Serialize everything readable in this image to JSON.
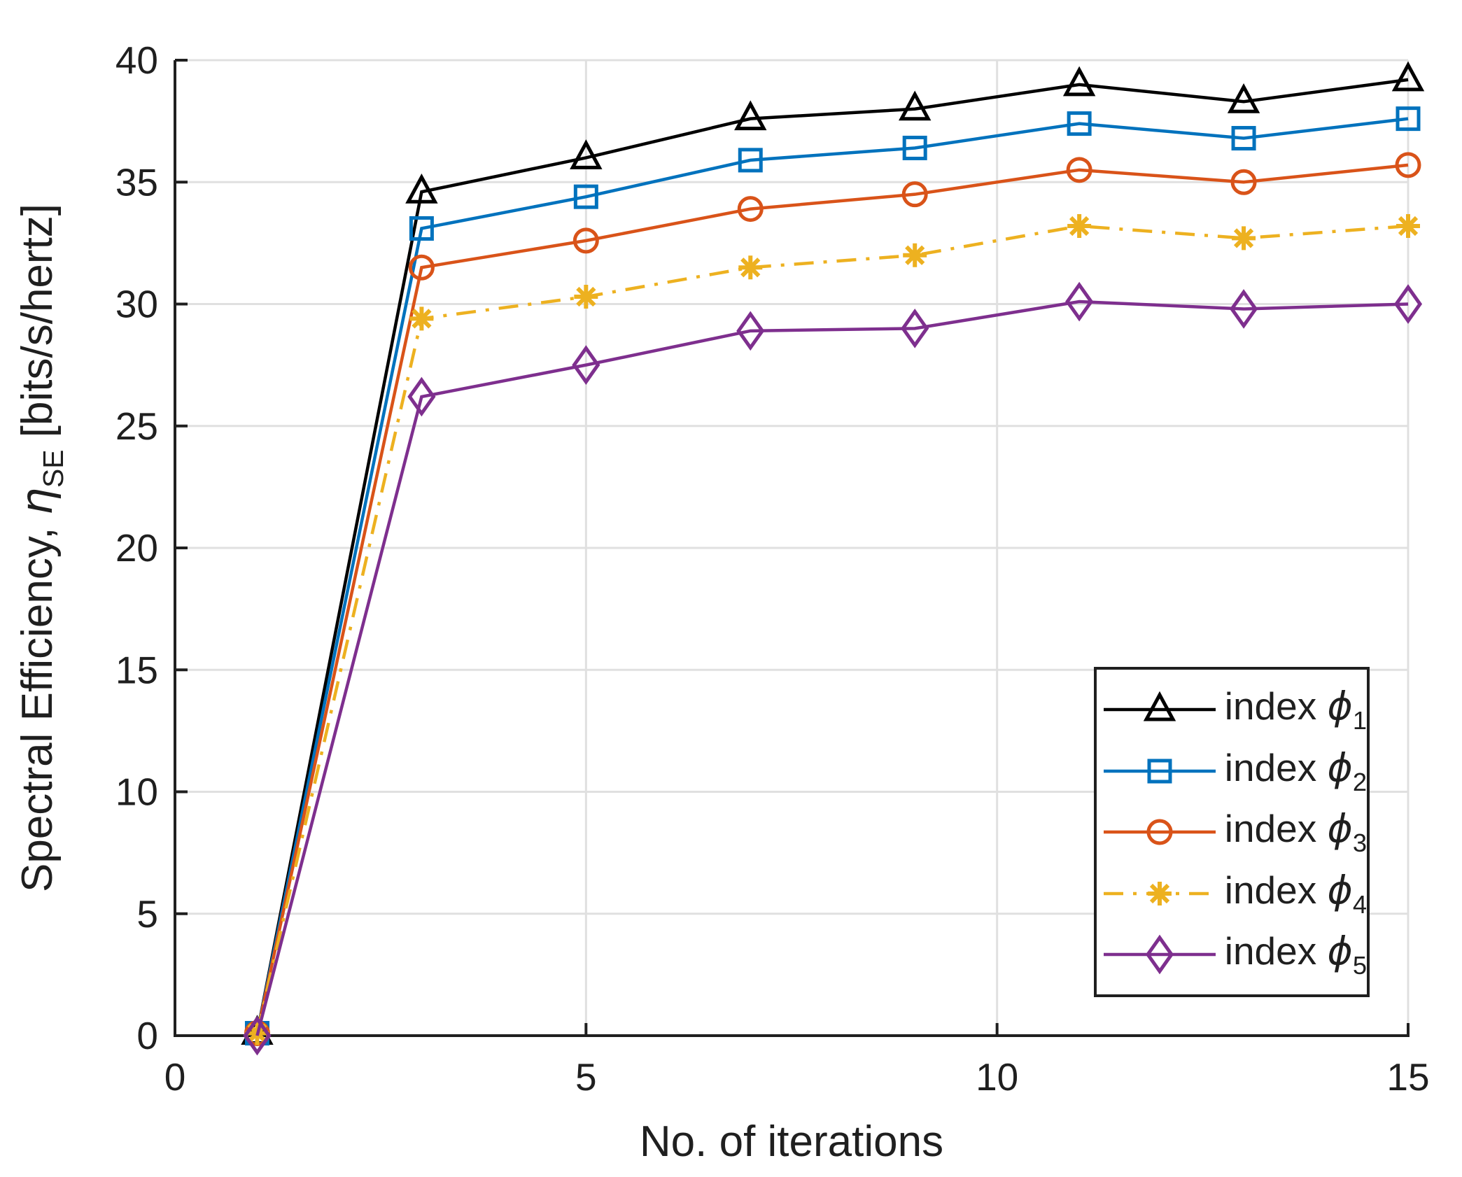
{
  "figure": {
    "background": "#ffffff",
    "axis_color": "#1f1f1f",
    "grid_color": "#e0e0e0"
  },
  "labels": {
    "xlabel": "No. of iterations",
    "ylabel_pre": "Spectral Efficiency, ",
    "ylabel_symbol": "η",
    "ylabel_sub": "SE",
    "ylabel_post": " [bits/s/hertz]"
  },
  "chart_data": {
    "type": "line",
    "title": "",
    "xlabel": "No. of iterations",
    "ylabel": "Spectral Efficiency, η_SE [bits/s/hertz]",
    "x": [
      1,
      3,
      5,
      7,
      9,
      11,
      13,
      15
    ],
    "xlim": [
      0,
      15
    ],
    "ylim": [
      0,
      40
    ],
    "xticks": [
      0,
      5,
      10,
      15
    ],
    "yticks": [
      0,
      5,
      10,
      15,
      20,
      25,
      30,
      35,
      40
    ],
    "grid": true,
    "legend_position": "lower-right-inside",
    "series": [
      {
        "name": "index ϕ_1",
        "legend": {
          "text": "index ",
          "symbol": "ϕ",
          "sub": "1"
        },
        "color": "#000000",
        "marker": "triangle",
        "linestyle": "solid",
        "values": [
          0.1,
          34.6,
          36.0,
          37.6,
          38.0,
          39.0,
          38.3,
          39.2
        ]
      },
      {
        "name": "index ϕ_2",
        "legend": {
          "text": "index ",
          "symbol": "ϕ",
          "sub": "2"
        },
        "color": "#0072BD",
        "marker": "square",
        "linestyle": "solid",
        "values": [
          0.1,
          33.1,
          34.4,
          35.9,
          36.4,
          37.4,
          36.8,
          37.6
        ]
      },
      {
        "name": "index ϕ_3",
        "legend": {
          "text": "index ",
          "symbol": "ϕ",
          "sub": "3"
        },
        "color": "#D95319",
        "marker": "circle",
        "linestyle": "solid",
        "values": [
          0.1,
          31.5,
          32.6,
          33.9,
          34.5,
          35.5,
          35.0,
          35.7
        ]
      },
      {
        "name": "index ϕ_4",
        "legend": {
          "text": "index ",
          "symbol": "ϕ",
          "sub": "4"
        },
        "color": "#EDB120",
        "marker": "asterisk",
        "linestyle": "dashdot",
        "values": [
          0.1,
          29.4,
          30.3,
          31.5,
          32.0,
          33.2,
          32.7,
          33.2
        ]
      },
      {
        "name": "index ϕ_5",
        "legend": {
          "text": "index ",
          "symbol": "ϕ",
          "sub": "5"
        },
        "color": "#7E2F8E",
        "marker": "diamond",
        "linestyle": "solid",
        "values": [
          0.0,
          26.2,
          27.5,
          28.9,
          29.0,
          30.1,
          29.8,
          30.0
        ]
      }
    ]
  }
}
